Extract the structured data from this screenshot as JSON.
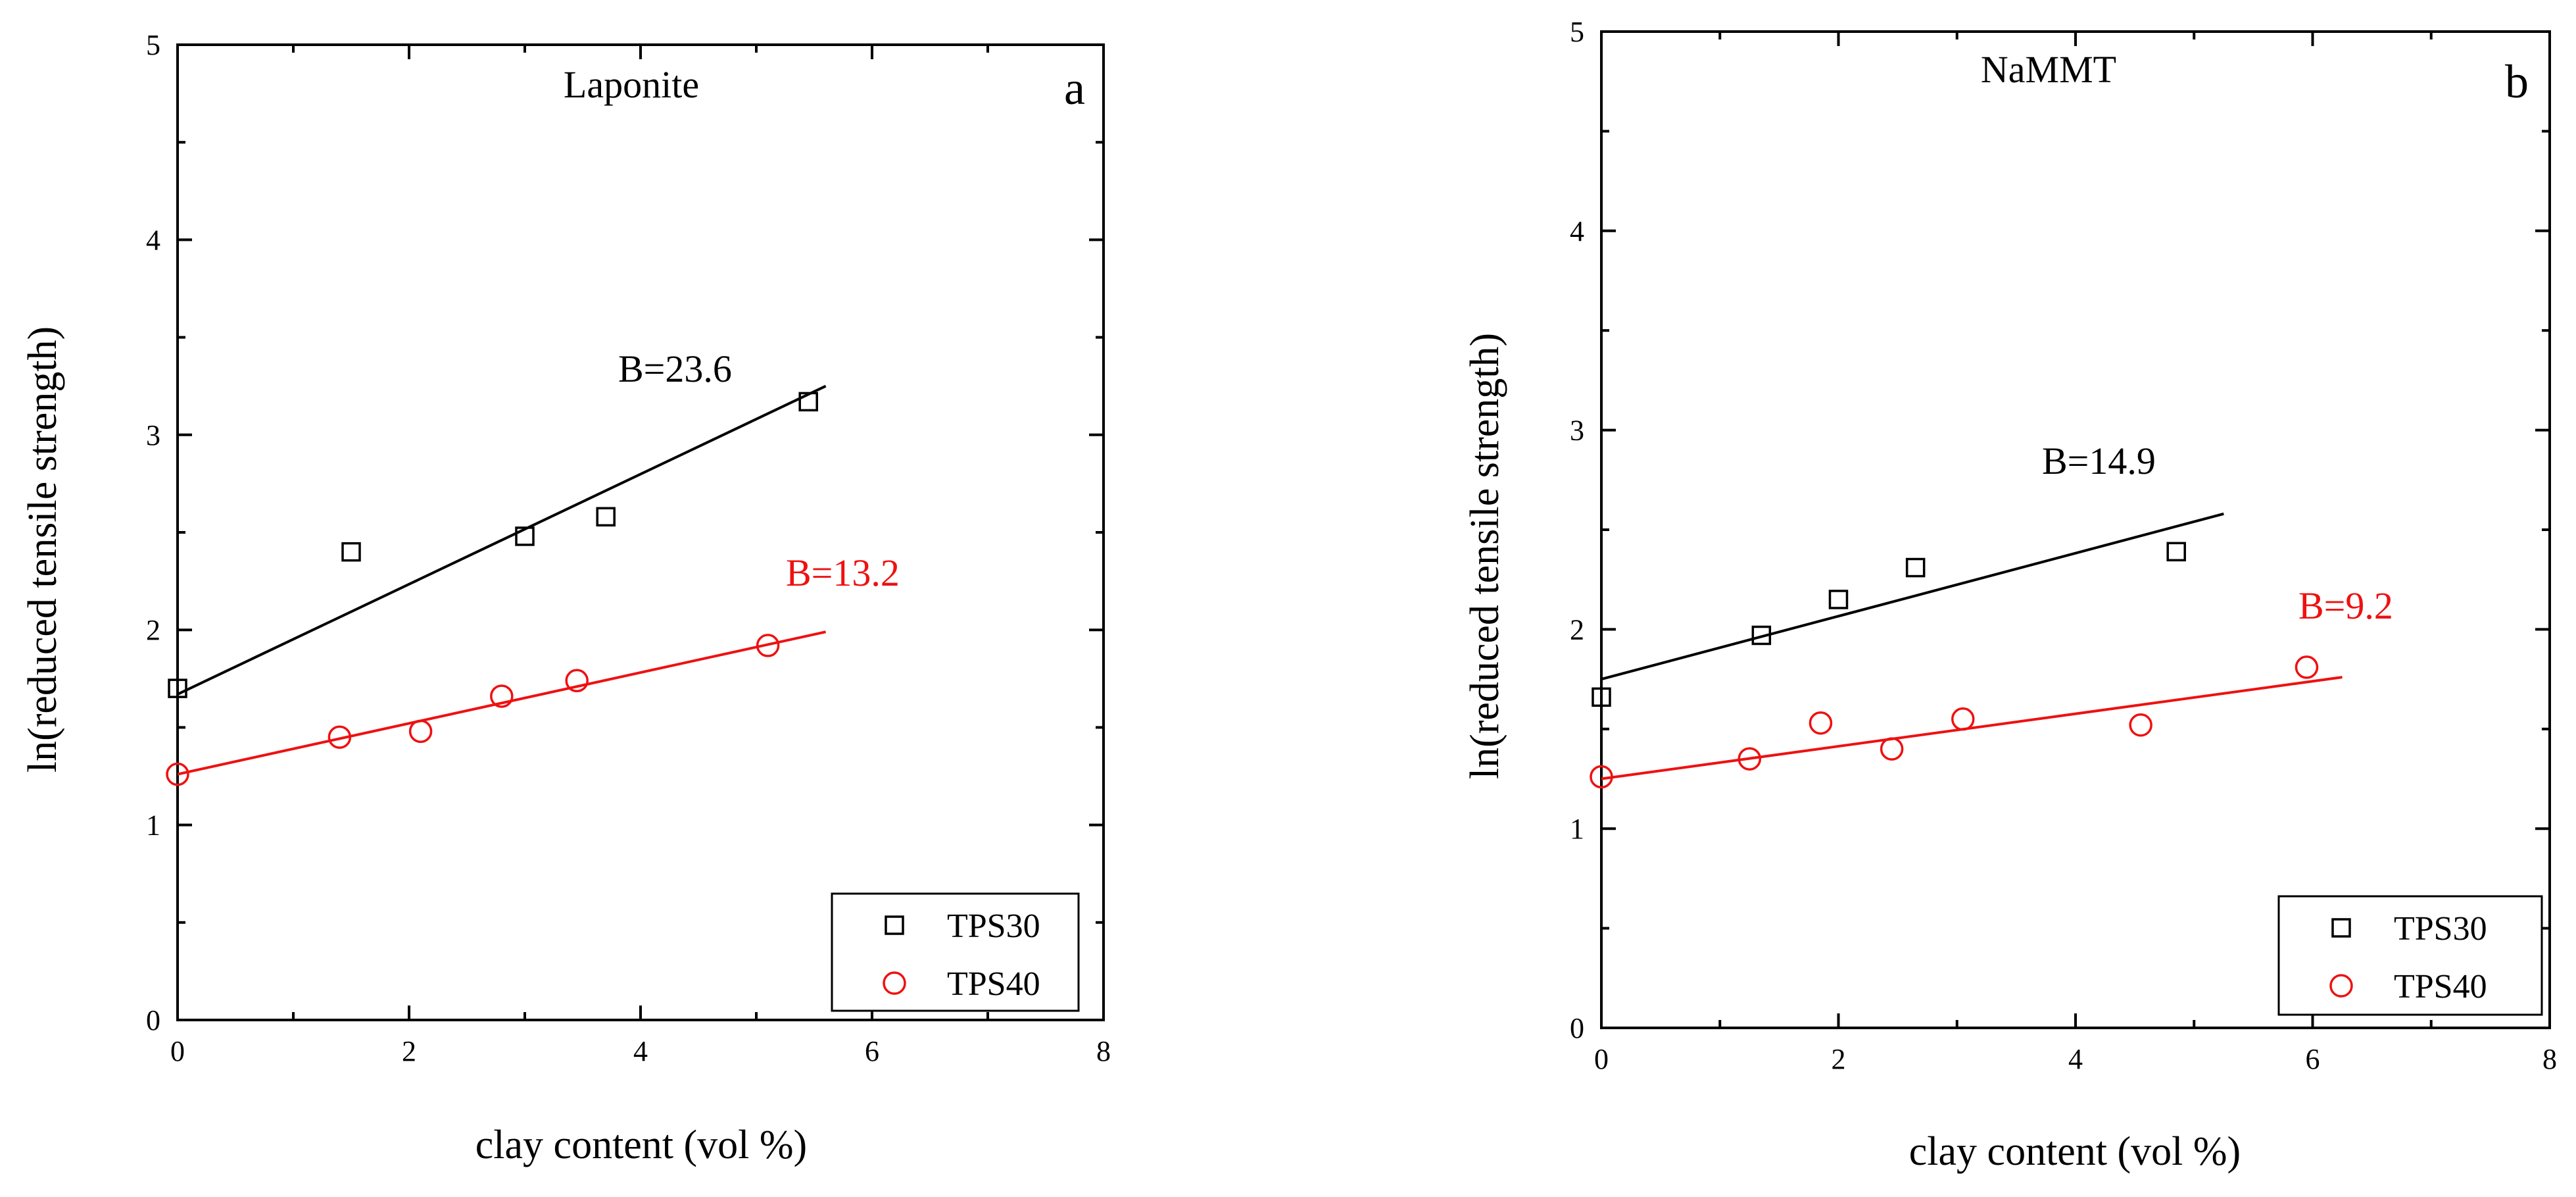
{
  "chart_data": [
    {
      "type": "scatter",
      "panel": "a",
      "title": "Laponite",
      "xlabel": "clay content (vol %)",
      "ylabel": "ln(reduced tensile strength)",
      "xlim": [
        0,
        8
      ],
      "ylim": [
        0,
        5
      ],
      "xticks": [
        0,
        2,
        4,
        6,
        8
      ],
      "yticks": [
        0,
        1,
        2,
        3,
        4,
        5
      ],
      "legend": "bottom-right",
      "series": [
        {
          "name": "TPS30",
          "marker": "square",
          "color": "#000000",
          "x": [
            0,
            1.5,
            3.0,
            3.7,
            5.45
          ],
          "y": [
            1.7,
            2.4,
            2.48,
            2.58,
            3.17
          ],
          "fit": {
            "x": [
              0,
              5.6
            ],
            "y": [
              1.67,
              3.25
            ]
          },
          "annotation": "B=23.6"
        },
        {
          "name": "TPS40",
          "marker": "circle",
          "color": "#ee1111",
          "x": [
            0,
            1.4,
            2.1,
            2.8,
            3.45,
            5.1
          ],
          "y": [
            1.26,
            1.45,
            1.48,
            1.66,
            1.74,
            1.92
          ],
          "fit": {
            "x": [
              0,
              5.6
            ],
            "y": [
              1.26,
              1.99
            ]
          },
          "annotation": "B=13.2"
        }
      ]
    },
    {
      "type": "scatter",
      "panel": "b",
      "title": "NaMMT",
      "xlabel": "clay content (vol %)",
      "ylabel": "ln(reduced tensile strength)",
      "xlim": [
        0,
        8
      ],
      "ylim": [
        0,
        5
      ],
      "xticks": [
        0,
        2,
        4,
        6,
        8
      ],
      "yticks": [
        0,
        1,
        2,
        3,
        4,
        5
      ],
      "legend": "bottom-right",
      "series": [
        {
          "name": "TPS30",
          "marker": "square",
          "color": "#000000",
          "x": [
            0,
            1.35,
            2.0,
            2.65,
            4.85
          ],
          "y": [
            1.66,
            1.97,
            2.15,
            2.31,
            2.39
          ],
          "fit": {
            "x": [
              0,
              5.25
            ],
            "y": [
              1.75,
              2.58
            ]
          },
          "annotation": "B=14.9"
        },
        {
          "name": "TPS40",
          "marker": "circle",
          "color": "#ee1111",
          "x": [
            0,
            1.25,
            1.85,
            2.45,
            3.05,
            4.55,
            5.95
          ],
          "y": [
            1.26,
            1.35,
            1.53,
            1.4,
            1.55,
            1.52,
            1.81
          ],
          "fit": {
            "x": [
              0,
              6.25
            ],
            "y": [
              1.25,
              1.76
            ]
          },
          "annotation": "B=9.2"
        }
      ]
    }
  ]
}
